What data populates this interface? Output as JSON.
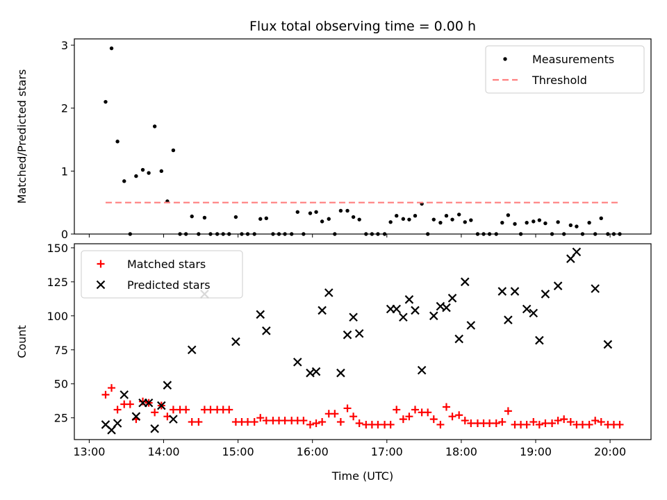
{
  "chart_data": [
    {
      "type": "scatter",
      "title": "Flux total observing time = 0.00 h",
      "xlabel": "",
      "ylabel": "Matched/Predicted stars",
      "xlim": [
        12.8,
        20.55
      ],
      "ylim": [
        0,
        3.1
      ],
      "yticks": [
        0,
        1,
        2,
        3
      ],
      "xticks": [
        13,
        14,
        15,
        16,
        17,
        18,
        19,
        20
      ],
      "xtick_labels_visible": false,
      "grid": false,
      "legend": {
        "placement": "top-right",
        "entries": [
          "Measurements",
          "Threshold"
        ]
      },
      "series": [
        {
          "name": "Measurements",
          "marker": "dot",
          "color": "#000000",
          "x": [
            13.22,
            13.3,
            13.38,
            13.47,
            13.55,
            13.63,
            13.72,
            13.8,
            13.88,
            13.97,
            14.05,
            14.13,
            14.22,
            14.3,
            14.38,
            14.47,
            14.55,
            14.63,
            14.72,
            14.8,
            14.88,
            14.97,
            15.05,
            15.13,
            15.22,
            15.3,
            15.38,
            15.47,
            15.55,
            15.63,
            15.72,
            15.8,
            15.88,
            15.97,
            16.05,
            16.13,
            16.22,
            16.3,
            16.38,
            16.47,
            16.55,
            16.63,
            16.72,
            16.8,
            16.88,
            16.97,
            17.05,
            17.13,
            17.22,
            17.3,
            17.38,
            17.47,
            17.55,
            17.63,
            17.72,
            17.8,
            17.88,
            17.97,
            18.05,
            18.13,
            18.22,
            18.3,
            18.38,
            18.47,
            18.55,
            18.63,
            18.72,
            18.8,
            18.88,
            18.97,
            19.05,
            19.13,
            19.22,
            19.3,
            19.38,
            19.47,
            19.55,
            19.63,
            19.72,
            19.8,
            19.88,
            19.97,
            20.05,
            20.13
          ],
          "y": [
            2.1,
            2.95,
            1.47,
            0.84,
            0.0,
            0.92,
            1.02,
            0.97,
            1.71,
            1.0,
            0.52,
            1.33,
            0.0,
            0.0,
            0.28,
            0.0,
            0.26,
            0.0,
            0.0,
            0.0,
            0.0,
            0.27,
            0.0,
            0.0,
            0.0,
            0.24,
            0.25,
            0.0,
            0.0,
            0.0,
            0.0,
            0.35,
            0.0,
            0.33,
            0.35,
            0.2,
            0.24,
            0.0,
            0.37,
            0.37,
            0.27,
            0.23,
            0.0,
            0.0,
            0.0,
            0.0,
            0.19,
            0.29,
            0.24,
            0.23,
            0.29,
            0.48,
            0.0,
            0.23,
            0.18,
            0.29,
            0.23,
            0.31,
            0.19,
            0.22,
            0.0,
            0.0,
            0.0,
            0.0,
            0.18,
            0.3,
            0.16,
            0.0,
            0.18,
            0.2,
            0.22,
            0.17,
            0.0,
            0.19,
            0.0,
            0.14,
            0.12,
            0.0,
            0.18,
            0.0,
            0.25,
            0.0,
            0.0,
            0.0
          ]
        },
        {
          "name": "Threshold",
          "marker": "dashed-line",
          "color": "#ff7f7f",
          "x": [
            13.22,
            20.13
          ],
          "y": [
            0.5,
            0.5
          ]
        }
      ]
    },
    {
      "type": "scatter",
      "title": "",
      "xlabel": "Time (UTC)",
      "ylabel": "Count",
      "xlim": [
        12.8,
        20.55
      ],
      "ylim": [
        9,
        153
      ],
      "yticks": [
        25,
        50,
        75,
        100,
        125,
        150
      ],
      "xticks": [
        13,
        14,
        15,
        16,
        17,
        18,
        19,
        20
      ],
      "xtick_labels": [
        "13:00",
        "14:00",
        "15:00",
        "16:00",
        "17:00",
        "18:00",
        "19:00",
        "20:00"
      ],
      "grid": false,
      "legend": {
        "placement": "top-left",
        "entries": [
          "Matched stars",
          "Predicted stars"
        ]
      },
      "series": [
        {
          "name": "Matched stars",
          "marker": "plus",
          "color": "#ff0000",
          "x": [
            13.22,
            13.3,
            13.38,
            13.47,
            13.55,
            13.63,
            13.72,
            13.8,
            13.88,
            13.97,
            14.05,
            14.13,
            14.22,
            14.3,
            14.38,
            14.47,
            14.55,
            14.63,
            14.72,
            14.8,
            14.88,
            14.97,
            15.05,
            15.13,
            15.22,
            15.3,
            15.38,
            15.47,
            15.55,
            15.63,
            15.72,
            15.8,
            15.88,
            15.97,
            16.05,
            16.13,
            16.22,
            16.3,
            16.38,
            16.47,
            16.55,
            16.63,
            16.72,
            16.8,
            16.88,
            16.97,
            17.05,
            17.13,
            17.22,
            17.3,
            17.38,
            17.47,
            17.55,
            17.63,
            17.72,
            17.8,
            17.88,
            17.97,
            18.05,
            18.13,
            18.22,
            18.3,
            18.38,
            18.47,
            18.55,
            18.63,
            18.72,
            18.8,
            18.88,
            18.97,
            19.05,
            19.13,
            19.22,
            19.3,
            19.38,
            19.47,
            19.55,
            19.63,
            19.72,
            19.8,
            19.88,
            19.97,
            20.05,
            20.13
          ],
          "y": [
            42,
            47,
            31,
            35,
            35,
            24,
            37,
            36,
            29,
            34,
            26,
            31,
            31,
            31,
            22,
            22,
            31,
            31,
            31,
            31,
            31,
            22,
            22,
            22,
            22,
            25,
            23,
            23,
            23,
            23,
            23,
            23,
            23,
            20,
            21,
            22,
            28,
            28,
            22,
            32,
            26,
            21,
            20,
            20,
            20,
            20,
            20,
            31,
            24,
            26,
            31,
            29,
            29,
            24,
            20,
            33,
            26,
            27,
            23,
            21,
            21,
            21,
            21,
            21,
            22,
            30,
            20,
            20,
            20,
            22,
            20,
            21,
            21,
            23,
            24,
            22,
            20,
            20,
            20,
            23,
            22,
            20,
            20,
            20
          ]
        },
        {
          "name": "Predicted stars",
          "marker": "x",
          "color": "#000000",
          "x": [
            13.22,
            13.3,
            13.38,
            13.47,
            13.63,
            13.72,
            13.8,
            13.88,
            13.97,
            14.05,
            14.13,
            14.38,
            14.55,
            14.97,
            15.3,
            15.38,
            15.8,
            15.97,
            16.05,
            16.13,
            16.22,
            16.38,
            16.47,
            16.55,
            16.63,
            17.05,
            17.13,
            17.22,
            17.3,
            17.38,
            17.47,
            17.63,
            17.72,
            17.8,
            17.88,
            17.97,
            18.05,
            18.13,
            18.55,
            18.63,
            18.72,
            18.88,
            18.97,
            19.05,
            19.13,
            19.3,
            19.47,
            19.55,
            19.8,
            19.97
          ],
          "y": [
            20,
            16,
            21,
            42,
            26,
            36,
            36,
            17,
            34,
            49,
            24,
            75,
            116,
            81,
            101,
            89,
            66,
            58,
            59,
            104,
            117,
            58,
            86,
            99,
            87,
            105,
            105,
            99,
            112,
            104,
            60,
            100,
            107,
            106,
            113,
            83,
            125,
            93,
            118,
            97,
            118,
            105,
            102,
            82,
            116,
            122,
            142,
            147,
            120,
            79
          ]
        }
      ]
    }
  ]
}
